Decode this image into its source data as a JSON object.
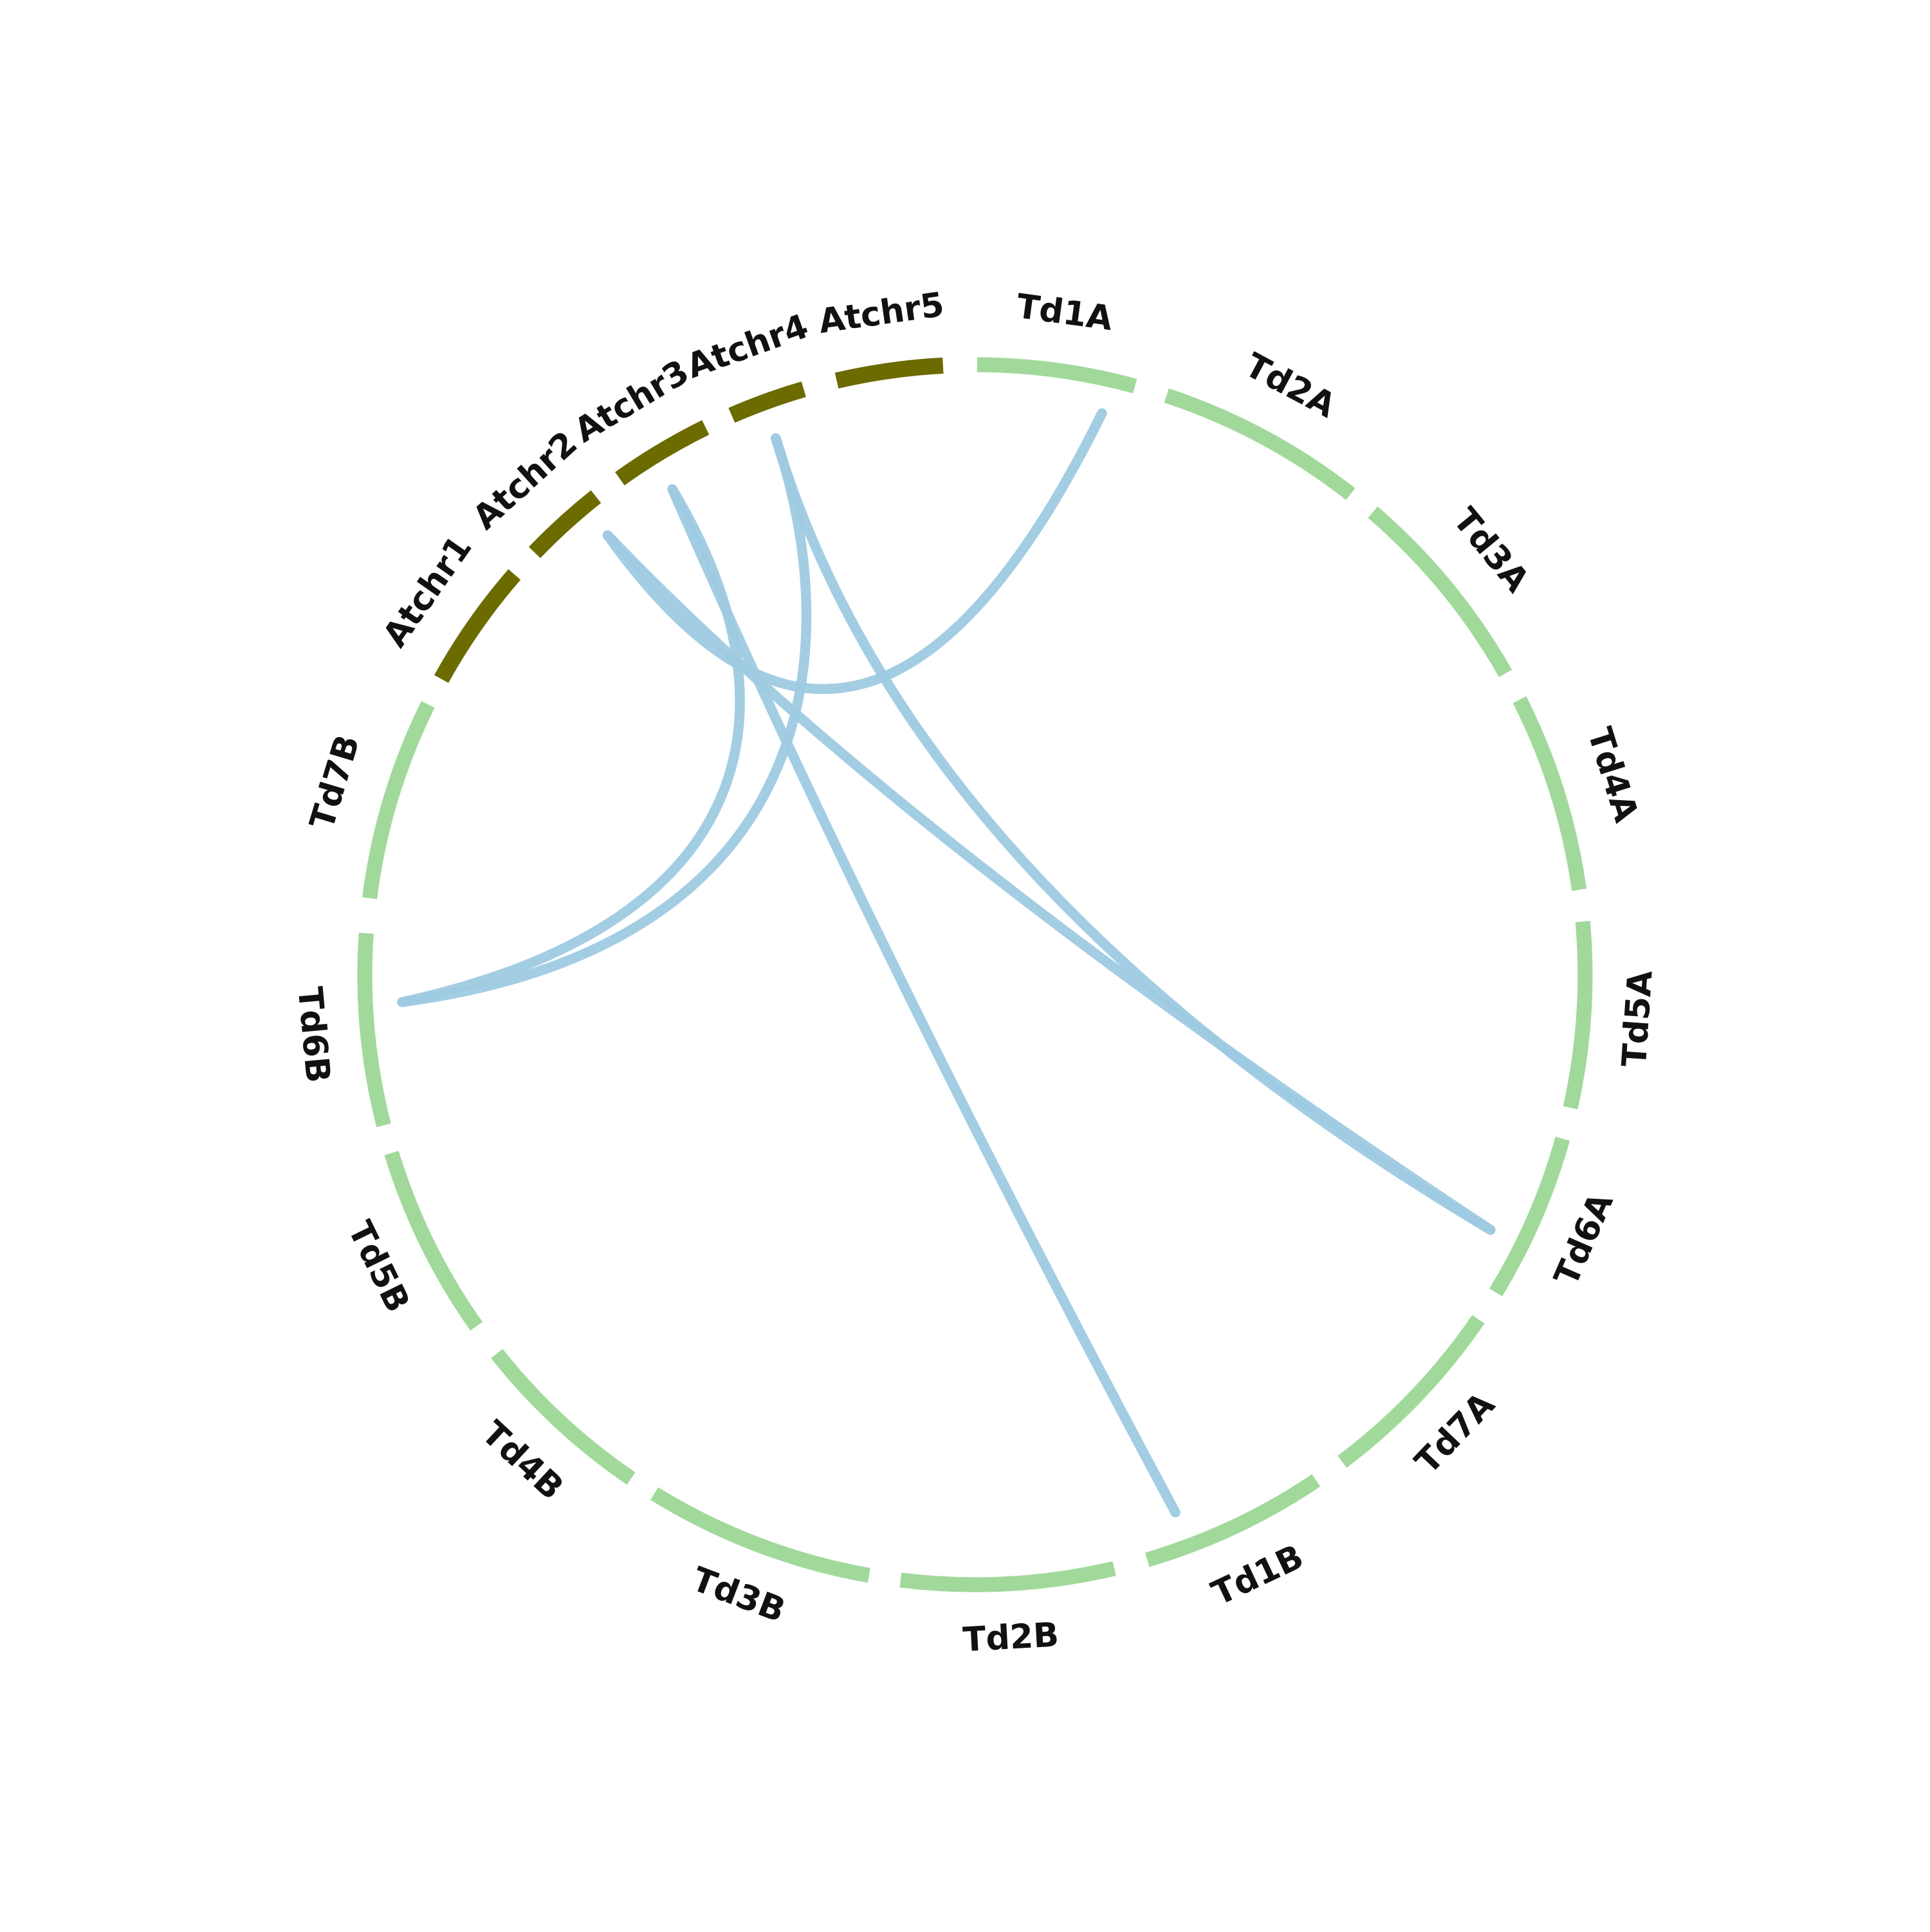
{
  "segments": [
    "Td1A",
    "Td2A",
    "Td3A",
    "Td4A",
    "Td5A",
    "Td6A",
    "Td7A",
    "Td1B",
    "Td2B",
    "Td3B",
    "Td4B",
    "Td5B",
    "Td6B",
    "Td7B",
    "Atchr1",
    "Atchr2",
    "Atchr3",
    "Atchr4",
    "Atchr5"
  ]
}
